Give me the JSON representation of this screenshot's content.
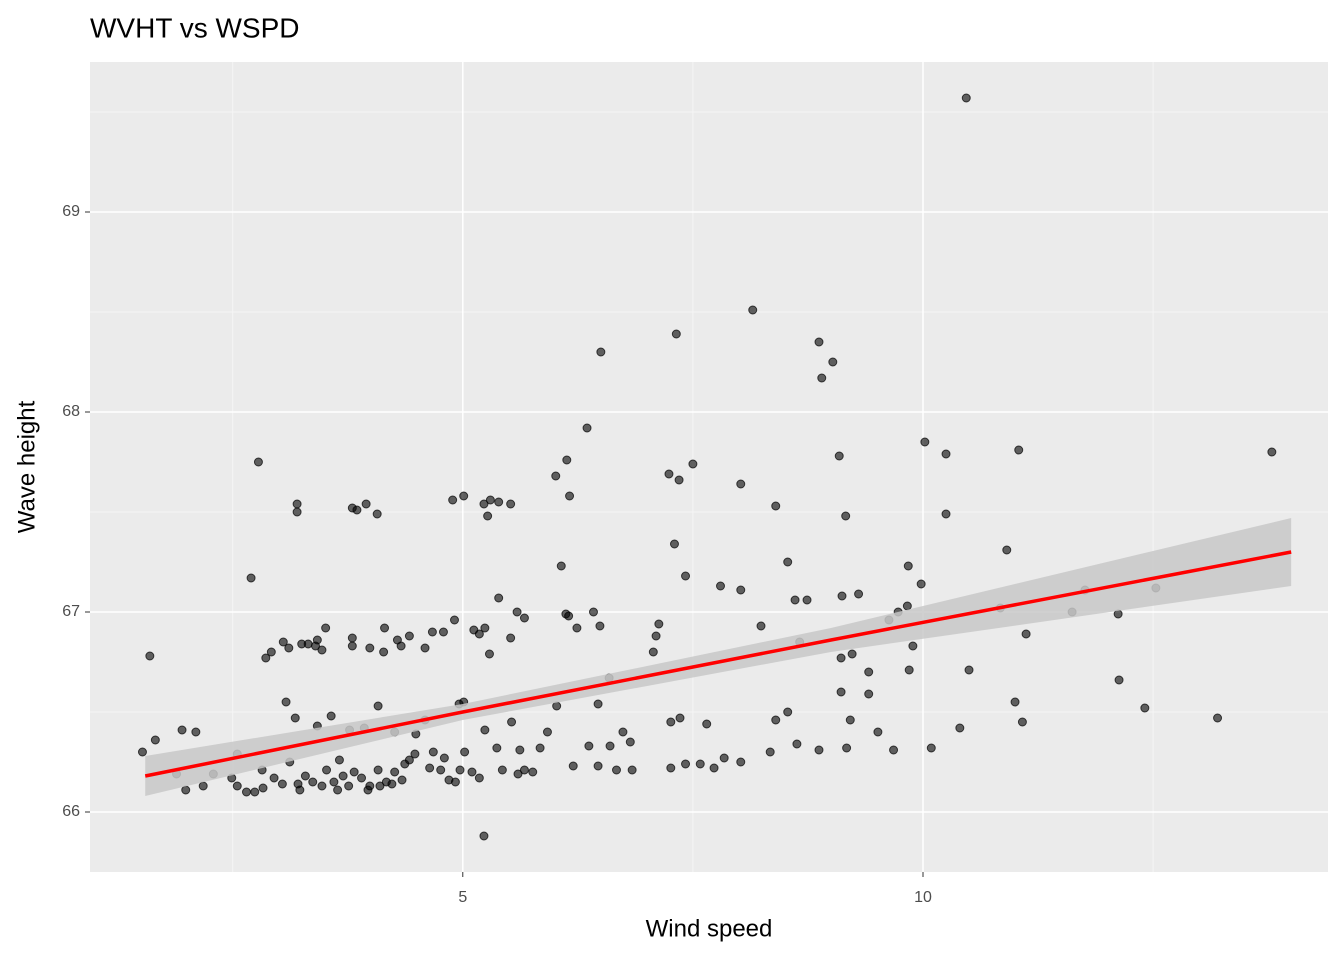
{
  "chart_data": {
    "type": "scatter",
    "title": "WVHT vs WSPD",
    "x_label": "Wind speed",
    "y_label": "Wave height",
    "xlim": [
      0.95,
      14.4
    ],
    "ylim": [
      65.7,
      69.75
    ],
    "xticks": [
      5,
      10
    ],
    "yticks": [
      66,
      67,
      68,
      69
    ],
    "xminor": [
      2.5,
      7.5,
      12.5
    ],
    "yminor": [
      66.5,
      67.5,
      68.5,
      69.5
    ],
    "grid": true,
    "color": "#000000",
    "x": [
      1.6,
      1.52,
      1.66,
      2.7,
      2.78,
      3.2,
      3.2,
      3.08,
      3.18,
      2.86,
      2.92,
      3.05,
      3.11,
      3.25,
      3.32,
      3.4,
      3.42,
      3.47,
      3.51,
      3.57,
      3.42,
      3.8,
      3.85,
      3.95,
      4.07,
      3.8,
      3.8,
      3.99,
      4.14,
      4.15,
      4.08,
      4.29,
      4.33,
      4.42,
      4.59,
      4.67,
      4.79,
      4.91,
      4.89,
      5.01,
      5.23,
      5.27,
      5.3,
      5.39,
      5.52,
      5.12,
      5.18,
      5.24,
      5.29,
      5.39,
      5.52,
      5.59,
      5.67,
      5.01,
      4.96,
      5.23,
      6.01,
      6.13,
      6.16,
      6.07,
      6.12,
      6.15,
      6.24,
      6.35,
      6.5,
      6.42,
      6.49,
      6.59,
      6.47,
      7.1,
      7.13,
      7.07,
      7.32,
      7.24,
      7.35,
      7.5,
      7.3,
      7.42,
      7.8,
      8.02,
      8.02,
      8.15,
      8.24,
      8.4,
      8.53,
      8.61,
      8.74,
      8.66,
      8.87,
      9.02,
      8.9,
      9.09,
      9.16,
      9.12,
      9.3,
      9.23,
      9.11,
      9.41,
      9.41,
      9.11,
      9.63,
      9.73,
      9.83,
      9.84,
      9.89,
      9.85,
      9.98,
      10.02,
      10.25,
      10.25,
      10.47,
      10.5,
      10.84,
      10.91,
      11.04,
      11.12,
      11.0,
      11.08,
      11.62,
      11.76,
      12.12,
      12.13,
      12.41,
      12.53,
      13.2,
      13.79,
      10.4,
      10.09,
      9.68,
      9.51,
      9.21,
      9.17,
      8.87,
      8.63,
      8.53,
      8.4,
      8.34,
      8.02,
      7.84,
      7.73,
      7.65,
      7.58,
      7.42,
      7.26,
      7.26,
      7.36,
      6.84,
      6.82,
      6.67,
      6.74,
      6.6,
      6.47,
      6.37,
      6.2,
      6.02,
      5.92,
      5.84,
      5.76,
      5.67,
      5.62,
      5.53,
      5.43,
      5.37,
      5.24,
      5.1,
      4.97,
      4.92,
      4.85,
      4.76,
      4.68,
      4.59,
      4.49,
      4.42,
      4.34,
      4.26,
      4.17,
      4.08,
      3.99,
      3.9,
      3.82,
      3.76,
      3.7,
      3.66,
      3.6,
      3.52,
      3.47,
      3.37,
      3.29,
      3.21,
      3.12,
      3.04,
      2.95,
      2.83,
      2.74,
      2.65,
      2.55,
      2.49,
      2.29,
      2.18,
      2.1,
      1.99,
      1.95,
      1.89,
      2.55,
      2.82,
      3.77,
      3.93,
      4.26,
      4.37,
      4.48,
      4.64,
      4.8,
      5.02,
      5.18,
      5.6,
      4.1,
      4.23,
      3.64,
      3.97,
      3.23
    ],
    "y": [
      66.78,
      66.3,
      66.36,
      67.17,
      67.75,
      67.54,
      67.5,
      66.55,
      66.47,
      66.77,
      66.8,
      66.85,
      66.82,
      66.84,
      66.84,
      66.83,
      66.86,
      66.81,
      66.92,
      66.48,
      66.43,
      67.52,
      67.51,
      67.54,
      67.49,
      66.87,
      66.83,
      66.82,
      66.8,
      66.92,
      66.53,
      66.86,
      66.83,
      66.88,
      66.82,
      66.9,
      66.9,
      66.96,
      67.56,
      67.58,
      67.54,
      67.48,
      67.56,
      67.55,
      67.54,
      66.91,
      66.89,
      66.92,
      66.79,
      67.07,
      66.87,
      67.0,
      66.97,
      66.55,
      66.54,
      65.88,
      67.68,
      67.76,
      67.58,
      67.23,
      66.99,
      66.98,
      66.92,
      67.92,
      68.3,
      67.0,
      66.93,
      66.67,
      66.54,
      66.88,
      66.94,
      66.8,
      68.39,
      67.69,
      67.66,
      67.74,
      67.34,
      67.18,
      67.13,
      67.11,
      67.64,
      68.51,
      66.93,
      67.53,
      67.25,
      67.06,
      67.06,
      66.85,
      68.35,
      68.25,
      68.17,
      67.78,
      67.48,
      67.08,
      67.09,
      66.79,
      66.77,
      66.7,
      66.59,
      66.6,
      66.96,
      67.0,
      67.03,
      67.23,
      66.83,
      66.71,
      67.14,
      67.85,
      67.79,
      67.49,
      69.57,
      66.71,
      67.02,
      67.31,
      67.81,
      66.89,
      66.55,
      66.45,
      67.0,
      67.11,
      66.99,
      66.66,
      66.52,
      67.12,
      66.47,
      67.8,
      66.42,
      66.32,
      66.31,
      66.4,
      66.46,
      66.32,
      66.31,
      66.34,
      66.5,
      66.46,
      66.3,
      66.25,
      66.27,
      66.22,
      66.44,
      66.24,
      66.24,
      66.22,
      66.45,
      66.47,
      66.21,
      66.35,
      66.21,
      66.4,
      66.33,
      66.23,
      66.33,
      66.23,
      66.53,
      66.4,
      66.32,
      66.2,
      66.21,
      66.31,
      66.45,
      66.21,
      66.32,
      66.41,
      66.2,
      66.21,
      66.15,
      66.16,
      66.21,
      66.3,
      66.46,
      66.39,
      66.26,
      66.16,
      66.2,
      66.15,
      66.21,
      66.13,
      66.17,
      66.2,
      66.13,
      66.18,
      66.26,
      66.15,
      66.21,
      66.13,
      66.15,
      66.18,
      66.14,
      66.25,
      66.14,
      66.17,
      66.12,
      66.1,
      66.1,
      66.13,
      66.17,
      66.19,
      66.13,
      66.4,
      66.11,
      66.41,
      66.19,
      66.29,
      66.21,
      66.41,
      66.42,
      66.4,
      66.24,
      66.29,
      66.22,
      66.27,
      66.3,
      66.17,
      66.19,
      66.13,
      66.14,
      66.11,
      66.11,
      66.11
    ],
    "fit": {
      "color": "#ff0000",
      "band_color": "#c8c8c8",
      "x": [
        1.55,
        5,
        9,
        14.0
      ],
      "y": [
        66.18,
        66.5,
        66.86,
        67.3
      ],
      "lower": [
        66.08,
        66.46,
        66.8,
        67.13
      ],
      "upper": [
        66.28,
        66.54,
        66.92,
        67.47
      ]
    }
  }
}
